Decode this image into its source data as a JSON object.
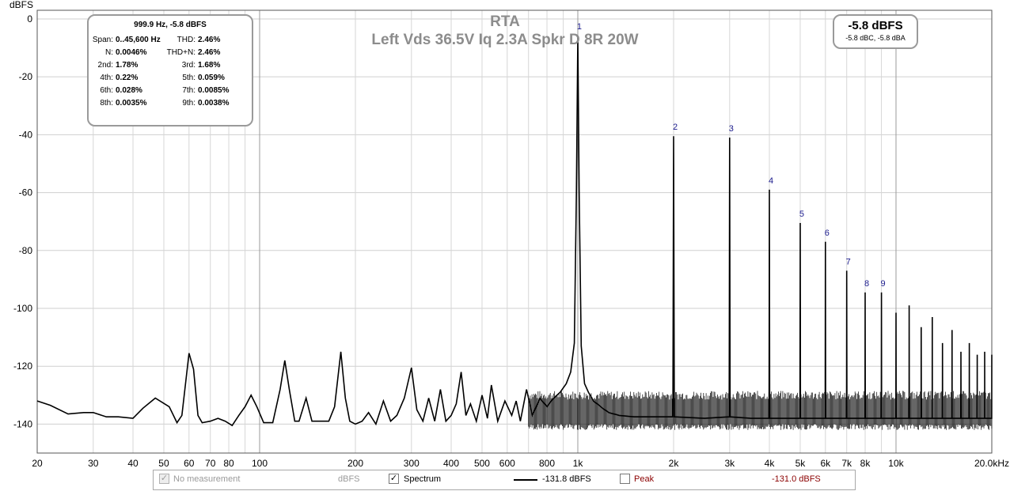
{
  "chart_data": {
    "type": "line",
    "title": "RTA",
    "subtitle": "Left Vds 36.5V Iq 2.3A Spkr D 8R 20W",
    "ylabel": "dBFS",
    "xscale": "log",
    "xlim": [
      20,
      20000
    ],
    "ylim": [
      -150,
      3
    ],
    "grid": true,
    "y_ticks": [
      0,
      -20,
      -40,
      -60,
      -80,
      -100,
      -120,
      -140
    ],
    "x_ticks": [
      {
        "v": 20,
        "label": "20"
      },
      {
        "v": 30,
        "label": "30"
      },
      {
        "v": 40,
        "label": "40"
      },
      {
        "v": 50,
        "label": "50"
      },
      {
        "v": 60,
        "label": "60"
      },
      {
        "v": 70,
        "label": "70"
      },
      {
        "v": 80,
        "label": "80"
      },
      {
        "v": 100,
        "label": "100"
      },
      {
        "v": 200,
        "label": "200"
      },
      {
        "v": 300,
        "label": "300"
      },
      {
        "v": 400,
        "label": "400"
      },
      {
        "v": 500,
        "label": "500"
      },
      {
        "v": 600,
        "label": "600"
      },
      {
        "v": 800,
        "label": "800"
      },
      {
        "v": 1000,
        "label": "1k"
      },
      {
        "v": 2000,
        "label": "2k"
      },
      {
        "v": 3000,
        "label": "3k"
      },
      {
        "v": 4000,
        "label": "4k"
      },
      {
        "v": 5000,
        "label": "5k"
      },
      {
        "v": 6000,
        "label": "6k"
      },
      {
        "v": 7000,
        "label": "7k"
      },
      {
        "v": 8000,
        "label": "8k"
      },
      {
        "v": 10000,
        "label": "10k"
      },
      {
        "v": 20000,
        "label": "20.0kHz"
      }
    ],
    "harmonics": [
      {
        "n": "1",
        "freq": 1000,
        "level": -5.8
      },
      {
        "n": "2",
        "freq": 2000,
        "level": -40.5
      },
      {
        "n": "3",
        "freq": 3000,
        "level": -41
      },
      {
        "n": "4",
        "freq": 4000,
        "level": -59
      },
      {
        "n": "5",
        "freq": 5000,
        "level": -70.5
      },
      {
        "n": "6",
        "freq": 6000,
        "level": -77
      },
      {
        "n": "7",
        "freq": 7000,
        "level": -87
      },
      {
        "n": "8",
        "freq": 8000,
        "level": -94.5
      },
      {
        "n": "9",
        "freq": 9000,
        "level": -94.5
      }
    ],
    "series": [
      {
        "color": "#000000",
        "points": [
          [
            20,
            -132
          ],
          [
            22,
            -133.5
          ],
          [
            25,
            -136.5
          ],
          [
            28,
            -136
          ],
          [
            30,
            -136
          ],
          [
            33,
            -137.5
          ],
          [
            36,
            -137.5
          ],
          [
            40,
            -138
          ],
          [
            43,
            -134.5
          ],
          [
            47,
            -131
          ],
          [
            52,
            -134
          ],
          [
            55,
            -139.5
          ],
          [
            57,
            -137
          ],
          [
            60,
            -115.5
          ],
          [
            62,
            -121
          ],
          [
            64,
            -137
          ],
          [
            66,
            -139.5
          ],
          [
            70,
            -139
          ],
          [
            74,
            -138
          ],
          [
            78,
            -139
          ],
          [
            82,
            -140.5
          ],
          [
            86,
            -137
          ],
          [
            90,
            -134
          ],
          [
            94,
            -130
          ],
          [
            98,
            -134
          ],
          [
            103,
            -139.5
          ],
          [
            110,
            -139.5
          ],
          [
            116,
            -128
          ],
          [
            120,
            -118
          ],
          [
            124,
            -128
          ],
          [
            129,
            -139
          ],
          [
            133,
            -139
          ],
          [
            140,
            -131
          ],
          [
            146,
            -139
          ],
          [
            155,
            -139
          ],
          [
            165,
            -139
          ],
          [
            172,
            -134
          ],
          [
            180,
            -115
          ],
          [
            186,
            -131
          ],
          [
            192,
            -139
          ],
          [
            200,
            -140
          ],
          [
            210,
            -139
          ],
          [
            220,
            -136
          ],
          [
            232,
            -140
          ],
          [
            245,
            -132
          ],
          [
            258,
            -139
          ],
          [
            270,
            -137
          ],
          [
            285,
            -131
          ],
          [
            300,
            -120.5
          ],
          [
            312,
            -135
          ],
          [
            326,
            -139
          ],
          [
            340,
            -131
          ],
          [
            355,
            -139
          ],
          [
            370,
            -128
          ],
          [
            385,
            -139
          ],
          [
            400,
            -137
          ],
          [
            415,
            -133
          ],
          [
            430,
            -122
          ],
          [
            445,
            -137
          ],
          [
            460,
            -133
          ],
          [
            480,
            -139
          ],
          [
            500,
            -130
          ],
          [
            520,
            -138
          ],
          [
            535,
            -126.5
          ],
          [
            560,
            -139
          ],
          [
            590,
            -132
          ],
          [
            620,
            -137
          ],
          [
            640,
            -132
          ],
          [
            660,
            -139
          ],
          [
            690,
            -128
          ],
          [
            720,
            -137
          ],
          [
            760,
            -131
          ],
          [
            800,
            -134
          ],
          [
            840,
            -131
          ],
          [
            880,
            -129
          ],
          [
            920,
            -126
          ],
          [
            950,
            -122
          ],
          [
            975,
            -112
          ],
          [
            990,
            -60
          ],
          [
            1000,
            -5.8
          ],
          [
            1010,
            -60
          ],
          [
            1025,
            -113
          ],
          [
            1050,
            -126
          ],
          [
            1080,
            -129
          ],
          [
            1120,
            -132
          ],
          [
            1180,
            -134
          ],
          [
            1250,
            -136
          ],
          [
            1350,
            -137
          ],
          [
            1500,
            -137.5
          ],
          [
            1700,
            -137.5
          ],
          [
            1990,
            -137.5
          ],
          [
            2000,
            -40.5
          ],
          [
            2010,
            -137.5
          ],
          [
            2500,
            -138
          ],
          [
            2990,
            -137.5
          ],
          [
            3000,
            -41
          ],
          [
            3010,
            -137.5
          ],
          [
            3500,
            -138
          ],
          [
            3990,
            -138
          ],
          [
            4000,
            -59
          ],
          [
            4010,
            -138
          ],
          [
            4500,
            -138
          ],
          [
            4990,
            -138
          ],
          [
            5000,
            -70.5
          ],
          [
            5010,
            -138
          ],
          [
            5500,
            -138
          ],
          [
            5990,
            -138
          ],
          [
            6000,
            -77
          ],
          [
            6010,
            -138
          ],
          [
            6500,
            -138
          ],
          [
            6990,
            -138
          ],
          [
            7000,
            -87
          ],
          [
            7010,
            -138
          ],
          [
            7500,
            -138
          ],
          [
            7990,
            -138
          ],
          [
            8000,
            -94.5
          ],
          [
            8010,
            -138
          ],
          [
            8500,
            -138
          ],
          [
            8990,
            -138
          ],
          [
            9000,
            -94.5
          ],
          [
            9010,
            -138
          ],
          [
            9500,
            -138
          ],
          [
            9990,
            -138
          ],
          [
            10000,
            -101.5
          ],
          [
            10010,
            -138
          ],
          [
            10500,
            -138
          ],
          [
            10990,
            -138
          ],
          [
            11000,
            -99
          ],
          [
            11010,
            -138
          ],
          [
            11500,
            -138
          ],
          [
            11990,
            -138
          ],
          [
            12000,
            -106.5
          ],
          [
            12010,
            -138
          ],
          [
            12500,
            -138
          ],
          [
            12990,
            -138
          ],
          [
            13000,
            -103
          ],
          [
            13010,
            -138
          ],
          [
            13500,
            -138
          ],
          [
            13990,
            -138
          ],
          [
            14000,
            -112
          ],
          [
            14010,
            -138
          ],
          [
            14500,
            -138
          ],
          [
            14990,
            -138
          ],
          [
            15000,
            -107.5
          ],
          [
            15010,
            -138
          ],
          [
            15500,
            -138
          ],
          [
            15990,
            -138
          ],
          [
            16000,
            -115
          ],
          [
            16010,
            -138
          ],
          [
            16500,
            -138
          ],
          [
            16990,
            -138
          ],
          [
            17000,
            -112
          ],
          [
            17010,
            -138
          ],
          [
            17500,
            -138
          ],
          [
            17990,
            -138
          ],
          [
            18000,
            -116
          ],
          [
            18010,
            -138
          ],
          [
            18500,
            -138
          ],
          [
            18990,
            -138
          ],
          [
            19000,
            -115
          ],
          [
            19010,
            -138
          ],
          [
            19500,
            -138
          ],
          [
            19990,
            -138
          ],
          [
            20000,
            -116
          ]
        ]
      }
    ],
    "noise_band": {
      "x_range": [
        700,
        20000
      ],
      "min": -141,
      "max": -130
    }
  },
  "stats_box": {
    "header": "999.9 Hz, -5.8 dBFS",
    "rows": [
      {
        "l1": "Span:",
        "v1": "0..45,600 Hz",
        "l2": "THD:",
        "v2": "2.46%"
      },
      {
        "l1": "N:",
        "v1": "0.0046%",
        "l2": "THD+N:",
        "v2": "2.46%"
      },
      {
        "l1": "2nd:",
        "v1": "1.78%",
        "l2": "3rd:",
        "v2": "1.68%"
      },
      {
        "l1": "4th:",
        "v1": "0.22%",
        "l2": "5th:",
        "v2": "0.059%"
      },
      {
        "l1": "6th:",
        "v1": "0.028%",
        "l2": "7th:",
        "v2": "0.0085%"
      },
      {
        "l1": "8th:",
        "v1": "0.0035%",
        "l2": "9th:",
        "v2": "0.0038%"
      }
    ]
  },
  "level_box": {
    "main": "-5.8 dBFS",
    "sub": "-5.8 dBC, -5.8 dBA"
  },
  "legend": {
    "no_measurement": {
      "label": "No measurement",
      "unit": "dBFS",
      "checked": true,
      "enabled": false
    },
    "spectrum": {
      "label": "Spectrum",
      "value": "-131.8 dBFS",
      "checked": true,
      "line_color": "#000000"
    },
    "peak": {
      "label": "Peak",
      "value": "-131.0 dBFS",
      "checked": false,
      "text_color": "#8b0000"
    }
  }
}
